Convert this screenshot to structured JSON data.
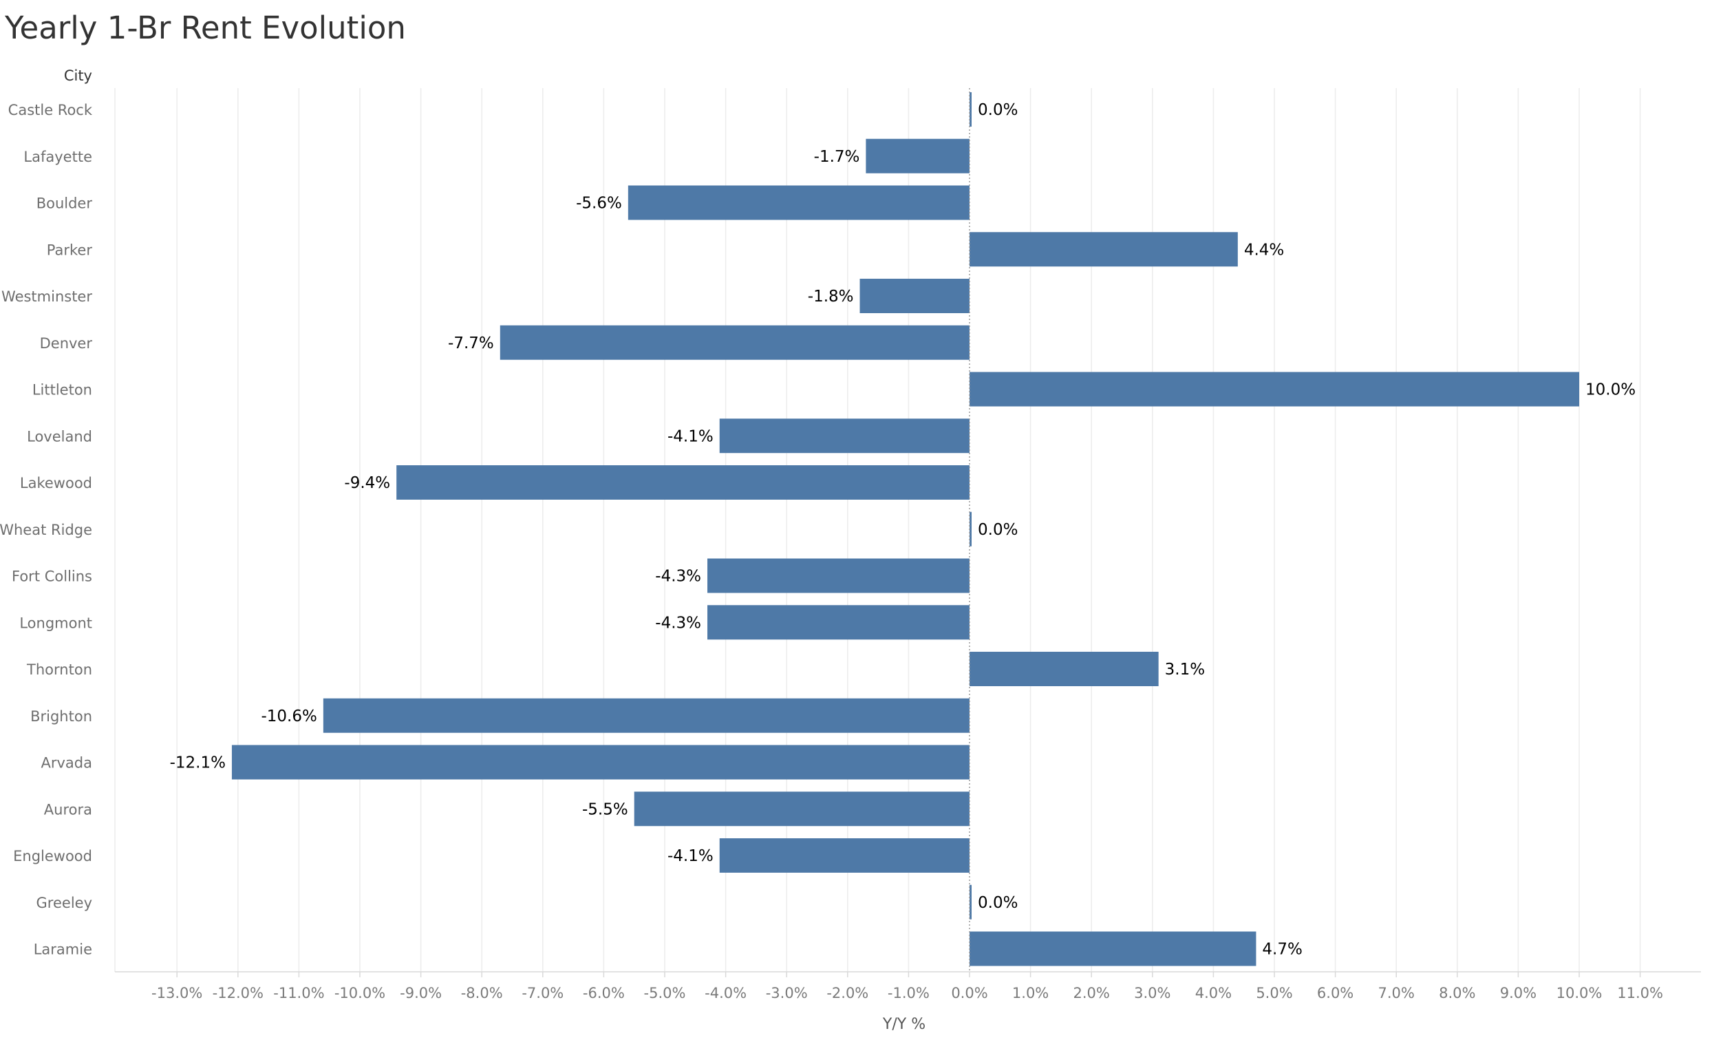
{
  "chart_data": {
    "type": "bar",
    "orientation": "horizontal",
    "title": "Yearly 1-Br Rent Evolution",
    "row_header": "City",
    "xlabel": "Y/Y %",
    "xlim": [
      -14,
      12.5
    ],
    "xticks": [
      -13,
      -12,
      -11,
      -10,
      -9,
      -8,
      -7,
      -6,
      -5,
      -4,
      -3,
      -2,
      -1,
      0,
      1,
      2,
      3,
      4,
      5,
      6,
      7,
      8,
      9,
      10,
      11
    ],
    "tick_labels": [
      "-13.0%",
      "-12.0%",
      "-11.0%",
      "-10.0%",
      "-9.0%",
      "-8.0%",
      "-7.0%",
      "-6.0%",
      "-5.0%",
      "-4.0%",
      "-3.0%",
      "-2.0%",
      "-1.0%",
      "0.0%",
      "1.0%",
      "2.0%",
      "3.0%",
      "4.0%",
      "5.0%",
      "6.0%",
      "7.0%",
      "8.0%",
      "9.0%",
      "10.0%",
      "11.0%"
    ],
    "categories": [
      "Castle Rock",
      "Lafayette",
      "Boulder",
      "Parker",
      "Westminster",
      "Denver",
      "Littleton",
      "Loveland",
      "Lakewood",
      "Wheat Ridge",
      "Fort Collins",
      "Longmont",
      "Thornton",
      "Brighton",
      "Arvada",
      "Aurora",
      "Englewood",
      "Greeley",
      "Laramie"
    ],
    "values": [
      0.0,
      -1.7,
      -5.6,
      4.4,
      -1.8,
      -7.7,
      10.0,
      -4.1,
      -9.4,
      0.0,
      -4.3,
      -4.3,
      3.1,
      -10.6,
      -12.1,
      -5.5,
      -4.1,
      0.0,
      4.7
    ],
    "data_labels": [
      "0.0%",
      "-1.7%",
      "-5.6%",
      "4.4%",
      "-1.8%",
      "-7.7%",
      "10.0%",
      "-4.1%",
      "-9.4%",
      "0.0%",
      "-4.3%",
      "-4.3%",
      "3.1%",
      "-10.6%",
      "-12.1%",
      "-5.5%",
      "-4.1%",
      "0.0%",
      "4.7%"
    ],
    "bar_color": "#4e79a7",
    "grid": "vertical",
    "legend": "none"
  }
}
